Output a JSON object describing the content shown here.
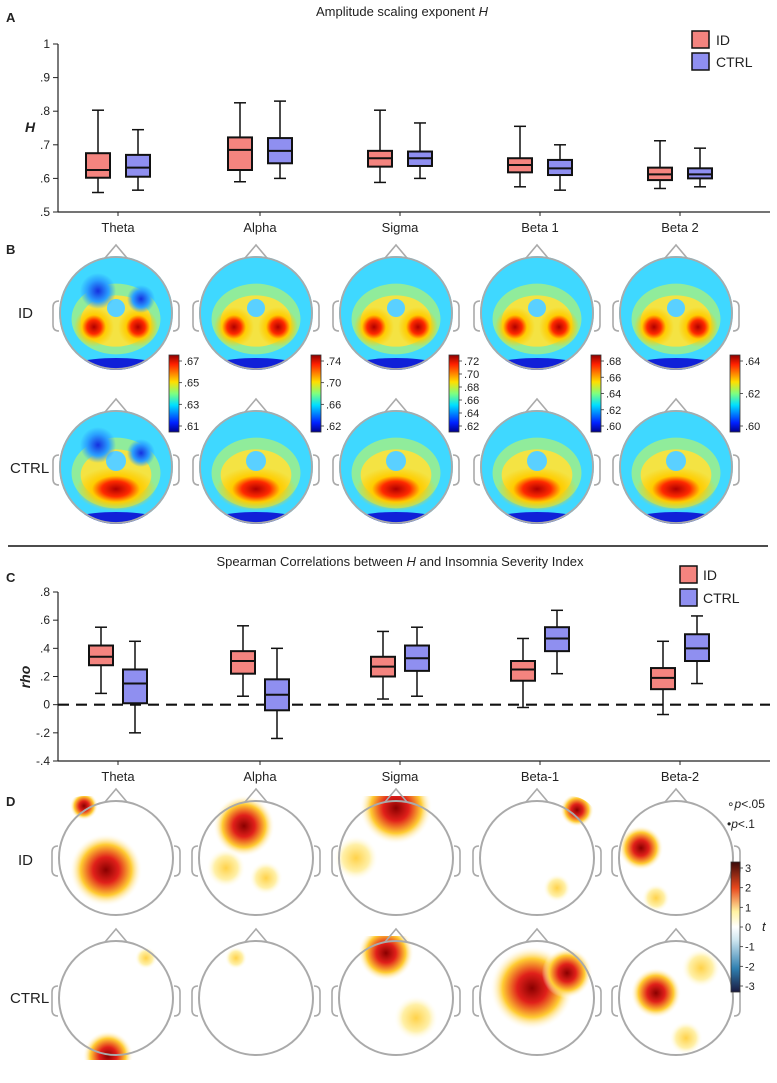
{
  "colors": {
    "id": "#f4847f",
    "ctrl": "#8f8ff0",
    "text": "#222222"
  },
  "panels": {
    "a": "A",
    "b": "B",
    "c": "C",
    "d": "D"
  },
  "chart_data": [
    {
      "type": "boxplot",
      "title_text": "Amplitude scaling exponent ",
      "title_var": "H",
      "ylabel": "H",
      "ylim": [
        0.5,
        1.0
      ],
      "yticks": [
        0.5,
        0.6,
        0.7,
        0.8,
        0.9,
        1.0
      ],
      "ytick_labels": [
        ".5",
        ".6",
        ".7",
        ".8",
        ".9",
        "1"
      ],
      "categories": [
        "Theta",
        "Alpha",
        "Sigma",
        "Beta 1",
        "Beta 2"
      ],
      "legend": [
        "ID",
        "CTRL"
      ],
      "series": [
        {
          "name": "ID",
          "boxes": [
            {
              "min": 0.558,
              "q1": 0.602,
              "median": 0.625,
              "q3": 0.675,
              "max": 0.803
            },
            {
              "min": 0.59,
              "q1": 0.625,
              "median": 0.685,
              "q3": 0.722,
              "max": 0.825
            },
            {
              "min": 0.588,
              "q1": 0.635,
              "median": 0.66,
              "q3": 0.682,
              "max": 0.803
            },
            {
              "min": 0.575,
              "q1": 0.618,
              "median": 0.64,
              "q3": 0.66,
              "max": 0.755
            },
            {
              "min": 0.57,
              "q1": 0.595,
              "median": 0.612,
              "q3": 0.632,
              "max": 0.712
            }
          ]
        },
        {
          "name": "CTRL",
          "boxes": [
            {
              "min": 0.565,
              "q1": 0.605,
              "median": 0.632,
              "q3": 0.67,
              "max": 0.745
            },
            {
              "min": 0.6,
              "q1": 0.645,
              "median": 0.682,
              "q3": 0.72,
              "max": 0.83
            },
            {
              "min": 0.6,
              "q1": 0.637,
              "median": 0.66,
              "q3": 0.68,
              "max": 0.765
            },
            {
              "min": 0.565,
              "q1": 0.61,
              "median": 0.63,
              "q3": 0.655,
              "max": 0.7
            },
            {
              "min": 0.575,
              "q1": 0.6,
              "median": 0.612,
              "q3": 0.63,
              "max": 0.69
            }
          ]
        }
      ]
    },
    {
      "type": "heatmap",
      "description": "Scalp topographies of H",
      "rows": [
        "ID",
        "CTRL"
      ],
      "bands": [
        "Theta",
        "Alpha",
        "Sigma",
        "Beta 1",
        "Beta 2"
      ],
      "colorbars": [
        {
          "ticks": [
            ".67",
            ".65",
            ".63",
            ".61"
          ]
        },
        {
          "ticks": [
            ".74",
            ".70",
            ".66",
            ".62"
          ]
        },
        {
          "ticks": [
            ".72",
            ".70",
            ".68",
            ".66",
            ".64",
            ".62"
          ]
        },
        {
          "ticks": [
            ".68",
            ".66",
            ".64",
            ".62",
            ".60"
          ]
        },
        {
          "ticks": [
            ".64",
            ".62",
            ".60"
          ]
        }
      ]
    },
    {
      "type": "boxplot",
      "title_pre": "Spearman Correlations between ",
      "title_var": "H",
      "title_post": " and Insomnia Severity Index",
      "ylabel": "rho",
      "ylim": [
        -0.4,
        0.8
      ],
      "yticks": [
        -0.4,
        -0.2,
        0,
        0.2,
        0.4,
        0.6,
        0.8
      ],
      "ytick_labels": [
        "-.4",
        "-.2",
        "0",
        ".2",
        ".4",
        ".6",
        ".8"
      ],
      "categories": [
        "Theta",
        "Alpha",
        "Sigma",
        "Beta-1",
        "Beta-2"
      ],
      "legend": [
        "ID",
        "CTRL"
      ],
      "reference_line": 0,
      "series": [
        {
          "name": "ID",
          "boxes": [
            {
              "min": 0.08,
              "q1": 0.28,
              "median": 0.34,
              "q3": 0.42,
              "max": 0.55
            },
            {
              "min": 0.06,
              "q1": 0.22,
              "median": 0.31,
              "q3": 0.38,
              "max": 0.56
            },
            {
              "min": 0.04,
              "q1": 0.2,
              "median": 0.27,
              "q3": 0.34,
              "max": 0.52
            },
            {
              "min": -0.02,
              "q1": 0.17,
              "median": 0.25,
              "q3": 0.31,
              "max": 0.47
            },
            {
              "min": -0.07,
              "q1": 0.11,
              "median": 0.19,
              "q3": 0.26,
              "max": 0.45
            }
          ]
        },
        {
          "name": "CTRL",
          "boxes": [
            {
              "min": -0.2,
              "q1": 0.01,
              "median": 0.15,
              "q3": 0.25,
              "max": 0.45
            },
            {
              "min": -0.24,
              "q1": -0.04,
              "median": 0.07,
              "q3": 0.18,
              "max": 0.4
            },
            {
              "min": 0.06,
              "q1": 0.24,
              "median": 0.33,
              "q3": 0.42,
              "max": 0.55
            },
            {
              "min": 0.22,
              "q1": 0.38,
              "median": 0.47,
              "q3": 0.55,
              "max": 0.67
            },
            {
              "min": 0.15,
              "q1": 0.31,
              "median": 0.4,
              "q3": 0.5,
              "max": 0.63
            }
          ]
        }
      ]
    },
    {
      "type": "heatmap",
      "description": "Scalp t-maps of correlation",
      "rows": [
        "ID",
        "CTRL"
      ],
      "bands": [
        "Theta",
        "Alpha",
        "Sigma",
        "Beta-1",
        "Beta-2"
      ],
      "colorbar_ticks": [
        "3",
        "2",
        "1",
        "0",
        "-1",
        "-2",
        "-3"
      ],
      "colorbar_label": "t",
      "sig_legend": [
        {
          "marker": "∘",
          "p": "p",
          "rel": "<.05"
        },
        {
          "marker": "•",
          "p": "p",
          "rel": "<.1"
        }
      ]
    }
  ]
}
